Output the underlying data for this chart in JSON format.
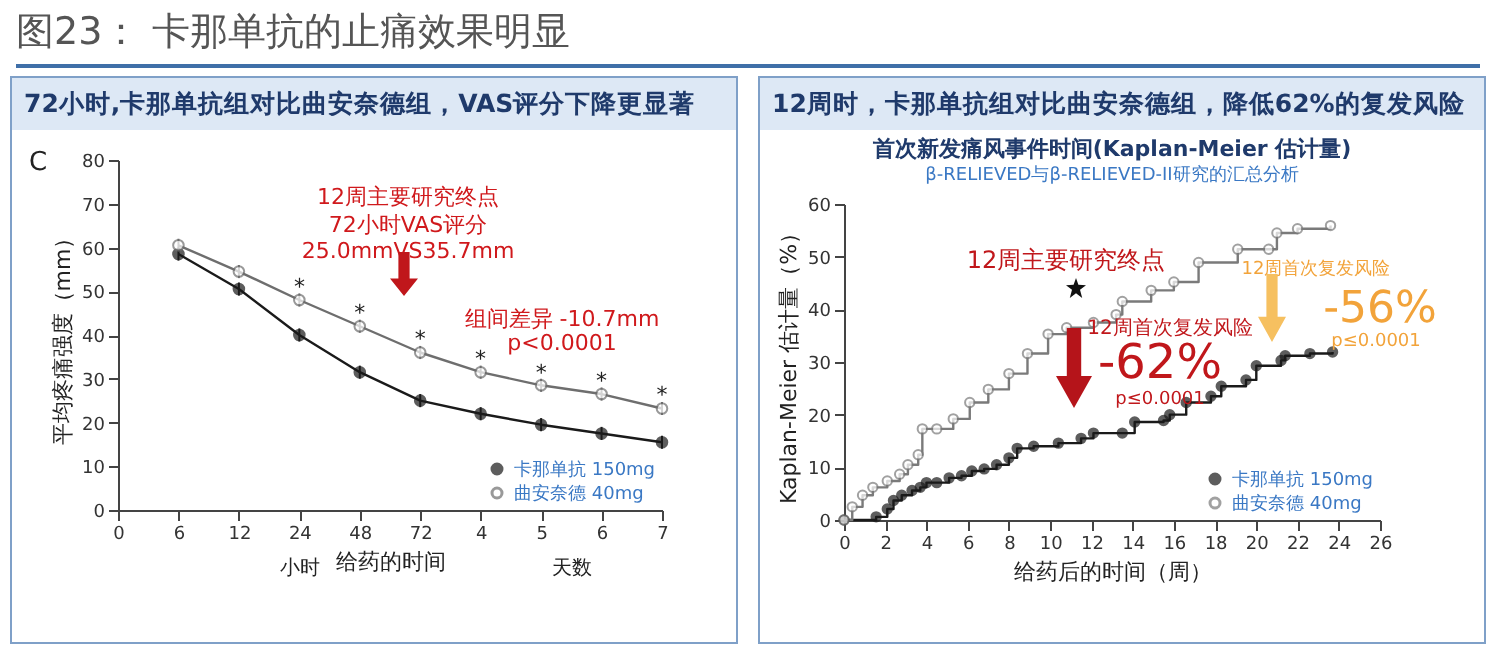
{
  "chart_data": [
    {
      "type": "line",
      "title": "图23： 卡那单抗的止痛效果明显",
      "subtitle": "72小时,卡那单抗组对比曲安奈德组，VAS评分下降更显著",
      "xlabel": "给药的时间",
      "ylabel": "平均疼痛强度（mm）",
      "categories": [
        "0",
        "6",
        "12",
        "24",
        "48",
        "72",
        "4",
        "5",
        "6",
        "7"
      ],
      "series": [
        {
          "name": "卡那单抗 150mg",
          "color": "#1a1a1a",
          "values": [
            null,
            58.5,
            50.5,
            40,
            31.5,
            25,
            22,
            19.5,
            17.5,
            15.5
          ],
          "errors": [
            null,
            1.5,
            1.5,
            1.5,
            1.5,
            1.5,
            1.5,
            1.5,
            1.5,
            1.5
          ]
        },
        {
          "name": "曲安奈德 40mg",
          "color": "#6e6e6e",
          "values": [
            null,
            60.5,
            54.5,
            48,
            42,
            36,
            31.5,
            28.5,
            26.5,
            23.2
          ],
          "errors": [
            null,
            1.5,
            1.5,
            1.5,
            1.5,
            1.5,
            1.5,
            1.5,
            1.5,
            1.5
          ]
        }
      ],
      "ylim": [
        0,
        80
      ],
      "yticks": [
        0,
        10,
        20,
        30,
        40,
        50,
        60,
        70,
        80
      ],
      "grid": false,
      "legend": "bottom right",
      "marker": "circle",
      "line_style": "solid",
      "annotations": [
        "C",
        "12周主要研究终点",
        "72小时VAS评分",
        "25.0mmVS35.7mm",
        "组间差异 -10.7mm",
        "p<0.0001",
        "小时",
        "天数",
        "*",
        "*",
        "*",
        "*",
        "*",
        "*",
        "*"
      ]
    },
    {
      "type": "step",
      "title": "首次新发痛风事件时间(Kaplan-Meier 估计量)",
      "subtitle": "12周时，卡那单抗组对比曲安奈德组，降低62%的复发风险",
      "xlabel": "给药后的时间（周）",
      "ylabel": "Kaplan-Meier 估计量（%）",
      "series": [
        {
          "name": "卡那单抗 150mg",
          "color": "#1a1a1a",
          "x": [
            0,
            1.56,
            2.1,
            2.4,
            2.8,
            3.3,
            3.7,
            4.0,
            4.5,
            5.1,
            5.7,
            6.2,
            6.8,
            7.4,
            8.0,
            8.4,
            9.2,
            10.4,
            11.5,
            12.1,
            13.5,
            14.1,
            15.5,
            15.8,
            16.6,
            17.8,
            18.3,
            19.5,
            20.0,
            21.2,
            21.4,
            22.6,
            23.7
          ],
          "values": [
            0,
            0.6,
            2.1,
            3.7,
            4.7,
            5.6,
            6.2,
            7.1,
            7.1,
            8.0,
            8.4,
            9.3,
            9.7,
            10.5,
            11.8,
            13.6,
            14.0,
            14.6,
            15.5,
            16.5,
            16.5,
            18.6,
            18.9,
            20.0,
            22.3,
            23.5,
            25.4,
            26.6,
            29.3,
            30.3,
            31.2,
            31.6,
            31.9
          ]
        },
        {
          "name": "曲安奈德 40mg",
          "color": "#7a7a7a",
          "x": [
            0,
            0.4,
            0.9,
            1.4,
            2.1,
            2.7,
            3.1,
            3.6,
            3.8,
            4.5,
            5.3,
            6.1,
            7.0,
            8.0,
            8.9,
            9.9,
            10.8,
            12.1,
            13.2,
            13.5,
            14.9,
            16.0,
            17.2,
            19.1,
            20.6,
            21.0,
            22.0,
            23.6
          ],
          "values": [
            0,
            2.5,
            4.7,
            6.2,
            7.4,
            8.7,
            10.5,
            12.4,
            17.3,
            17.3,
            19.2,
            22.3,
            24.8,
            27.8,
            31.6,
            35.3,
            36.5,
            37.5,
            39.0,
            41.5,
            43.6,
            45.2,
            48.9,
            51.4,
            51.4,
            54.5,
            55.3,
            55.9
          ]
        }
      ],
      "xlim": [
        0,
        26
      ],
      "xticks": [
        0,
        2,
        4,
        6,
        8,
        10,
        12,
        14,
        16,
        18,
        20,
        22,
        24,
        26
      ],
      "ylim": [
        0,
        60
      ],
      "yticks": [
        0,
        10,
        20,
        30,
        40,
        50,
        60
      ],
      "grid": false,
      "legend": "bottom right",
      "marker": "circle",
      "line_style": "solid",
      "annotations": [
        "β-RELIEVED与β-RELIEVED-II研究的汇总分析",
        "12周主要研究终点",
        "12周首次复发风险",
        "-62%",
        "p≤0.0001",
        "12周首次复发风险",
        "-56%",
        "p≤0.0001"
      ]
    }
  ]
}
